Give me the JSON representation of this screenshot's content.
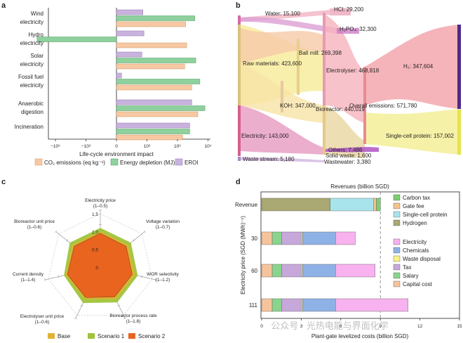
{
  "panel_letters": {
    "a": "a",
    "b": "b",
    "c": "c",
    "d": "d"
  },
  "colors": {
    "co2": "#f7c8a4",
    "energy": "#8fd19e",
    "eroi": "#c9b3de",
    "axis": "#231f20",
    "base": "#e0b335",
    "scen1": "#9fc43a",
    "scen2": "#e8641f",
    "carbon_tax": "#7ccf72",
    "gate_fee": "#f6c28b",
    "scp": "#a8e4ec",
    "hydrogen": "#aaa873",
    "electricity": "#f8b2ef",
    "chemicals": "#8fb2e6",
    "waste_disposal": "#f7f28a",
    "tax": "#c6a8da",
    "salary": "#8ad48d",
    "capital": "#f6c49c",
    "sankey_pink": "#f29fb0",
    "sankey_yellow": "#f3ee9a",
    "sankey_purple": "#b45cc6",
    "h2_bar": "#4b2b8c",
    "scp_bar": "#e7e34a"
  },
  "watermark": "公众号 · 光热电能与界面化学",
  "chart_data": [
    {
      "id": "a",
      "type": "bar",
      "orientation": "horizontal",
      "categories": [
        "Wind electricity",
        "Hydro electricity",
        "Solar electricity",
        "Fossil fuel electricity",
        "Anaerobic digestion",
        "Incineration"
      ],
      "category_lines": [
        [
          "Wind",
          "electricity"
        ],
        [
          "Hydro",
          "electricity"
        ],
        [
          "Solar",
          "electricity"
        ],
        [
          "Fossil fuel",
          "electricity"
        ],
        [
          "Anaerobic",
          "digestion"
        ],
        [
          "Incineration"
        ]
      ],
      "scale": "symlog",
      "x_ticks": [
        "−10⁶",
        "−10³",
        "0",
        "10³",
        "10⁶",
        "10⁹"
      ],
      "tick_exponents": [
        -6,
        -3,
        0,
        3,
        6,
        9
      ],
      "xlabel": "Life-cycle environment impact",
      "series": [
        {
          "name": "EROI",
          "log_values": [
            2.6,
            2.7,
            2.5,
            0.5,
            7.4,
            7.2
          ]
        },
        {
          "name": "Energy depletion (MJ)",
          "log_values": [
            7.7,
            -7.8,
            7.8,
            8.2,
            8.7,
            7.2
          ]
        },
        {
          "name": "CO₂ emissions (eq kg⁻¹)",
          "log_values": [
            6.8,
            6.9,
            6.7,
            7.4,
            8.0,
            6.5
          ]
        }
      ],
      "legend": [
        "CO₂ emissions (eq kg⁻¹)",
        "Energy depletion (MJ)",
        "EROI"
      ]
    },
    {
      "id": "b",
      "type": "sankey",
      "nodes": [
        {
          "name": "Water",
          "value": 15100,
          "label": "Water: 15,100"
        },
        {
          "name": "HCl",
          "value": 29200,
          "label": "HCl: 29,200"
        },
        {
          "name": "H₂PO₄",
          "value": 32300,
          "label": "H₂PO₄: 32,300"
        },
        {
          "name": "Ball mill",
          "value": 269398,
          "label": "Ball mill: 269,398"
        },
        {
          "name": "Raw materials",
          "value": 423600,
          "label": "Raw materials: 423,600"
        },
        {
          "name": "Electrolyser",
          "value": 468818,
          "label": "Electrolyser: 468,818"
        },
        {
          "name": "H₂",
          "value": 347604,
          "label": "H₂: 347,604"
        },
        {
          "name": "KOH",
          "value": 347000,
          "label": "KOH: 347,000"
        },
        {
          "name": "Bioreactor",
          "value": 440019,
          "label": "Bioreactor: 440,019"
        },
        {
          "name": "Overall emissions",
          "value": 571780,
          "label": "Overall emissions: 571,780"
        },
        {
          "name": "Electricity",
          "value": 143000,
          "label": "Electricity: 143,000"
        },
        {
          "name": "Single-cell protein",
          "value": 157002,
          "label": "Single-cell protein: 157,002"
        },
        {
          "name": "Others",
          "value": 7486,
          "label": "Others: 7,486"
        },
        {
          "name": "Solid waste",
          "value": 1600,
          "label": "Solid waste: 1,600"
        },
        {
          "name": "Waste stream",
          "value": 5180,
          "label": "Waste stream: 5,180"
        },
        {
          "name": "Wastewater",
          "value": 3380,
          "label": "Wastewater: 3,380"
        }
      ]
    },
    {
      "id": "c",
      "type": "radar",
      "axes": [
        {
          "label": "Electricity price",
          "range": "(1–0.5)"
        },
        {
          "label": "Voltage variation",
          "range": "(1–0.7)"
        },
        {
          "label": "WOR selectivity",
          "range": "(1–1.2)"
        },
        {
          "label": "Bioreactor process rate",
          "range": "(1–1.8)"
        },
        {
          "label": "Electrolyser unit price",
          "range": "(1–0.6)"
        },
        {
          "label": "Current density",
          "range": "(1–1.4)"
        },
        {
          "label": "Bioreactor unit price",
          "range": "(1–0.6)"
        }
      ],
      "r_ticks": [
        "1.5",
        "1.0",
        "0.5",
        "0"
      ],
      "r_tick_values": [
        1.5,
        1.0,
        0.5,
        0
      ],
      "series": [
        {
          "name": "Base",
          "values": [
            1.0,
            1.0,
            1.0,
            1.0,
            1.0,
            1.0,
            1.0
          ]
        },
        {
          "name": "Scenario 1",
          "values": [
            1.1,
            1.1,
            1.08,
            1.1,
            1.12,
            1.05,
            1.1
          ]
        },
        {
          "name": "Scenario 2",
          "values": [
            0.95,
            0.93,
            0.92,
            0.93,
            0.95,
            0.95,
            0.94
          ]
        }
      ],
      "legend": [
        "Base",
        "Scenario 1",
        "Scenario 2"
      ]
    },
    {
      "id": "d",
      "type": "bar",
      "orientation": "horizontal",
      "stacked": true,
      "title": "Revenues (billion SGD)",
      "ylabel": "Electricity price (SGD (MWh)⁻¹)",
      "xlabel": "Plant-gate levelized costs (billion SGD)",
      "xlim": [
        0,
        15
      ],
      "x_ticks": [
        "0",
        "3",
        "6",
        "9",
        "12",
        "15"
      ],
      "x_tick_values": [
        0,
        3,
        6,
        9,
        12,
        15
      ],
      "dashed_line_x": 9,
      "categories": [
        "Revenue",
        "30",
        "60",
        "111"
      ],
      "revenue_series": [
        {
          "name": "Hydrogen",
          "value": 5.2
        },
        {
          "name": "Single-cell protein",
          "value": 3.3
        },
        {
          "name": "Gate fee",
          "value": 0.2
        },
        {
          "name": "Carbon tax",
          "value": 0.3
        }
      ],
      "cost_series": [
        {
          "name": "Capital cost",
          "values": [
            0.8,
            0.8,
            0.8
          ]
        },
        {
          "name": "Salary",
          "values": [
            0.7,
            0.7,
            0.7
          ]
        },
        {
          "name": "Tax",
          "values": [
            1.5,
            1.5,
            1.5
          ]
        },
        {
          "name": "Waste disposal",
          "values": [
            0.1,
            0.1,
            0.1
          ]
        },
        {
          "name": "Chemicals",
          "values": [
            2.5,
            2.5,
            2.5
          ]
        },
        {
          "name": "Electricity",
          "values": [
            1.5,
            3.0,
            5.5
          ]
        }
      ],
      "legend_revenue": [
        "Carbon tax",
        "Gate fee",
        "Single-cell protein",
        "Hydrogen"
      ],
      "legend_cost": [
        "Electricity",
        "Chemicals",
        "Waste disposal",
        "Tax",
        "Salary",
        "Capital cost"
      ]
    }
  ]
}
